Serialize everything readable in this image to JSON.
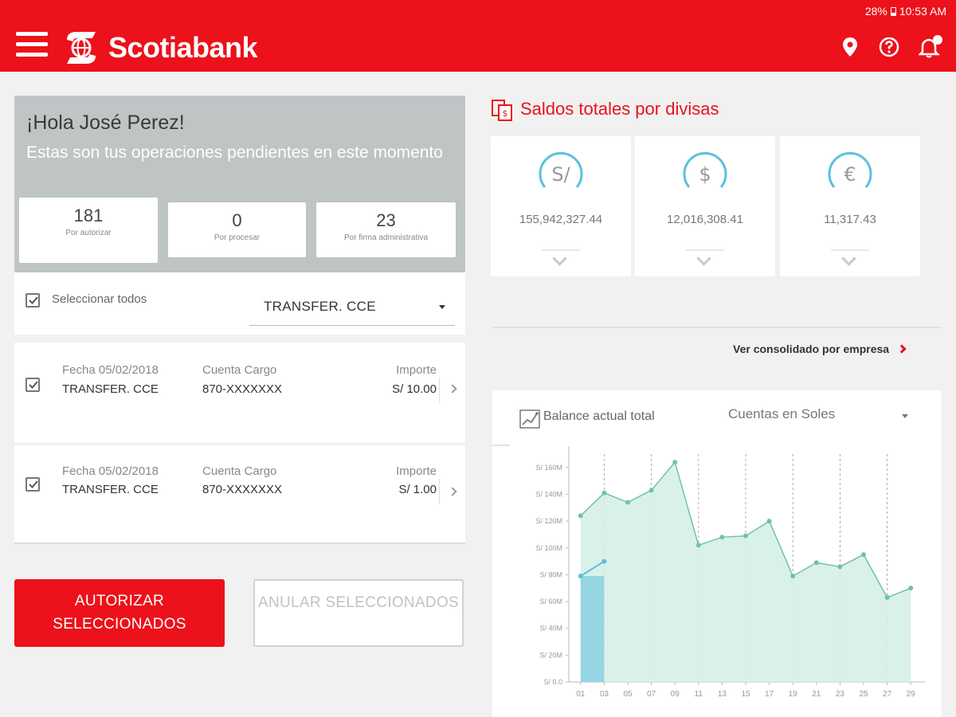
{
  "status": {
    "battery": "28%",
    "time": "10:53 AM"
  },
  "header": {
    "brand": "Scotiabank"
  },
  "greeting": {
    "title": "¡Hola José Perez!",
    "subtitle": "Estas son tus operaciones pendientes en este momento",
    "counts": [
      {
        "value": "181",
        "label": "Por autorizar"
      },
      {
        "value": "0",
        "label": "Por procesar"
      },
      {
        "value": "23",
        "label": "Por firma administrativa"
      }
    ]
  },
  "filter": {
    "select_all": "Seleccionar todos",
    "type_value": "TRANSFER. CCE"
  },
  "operations": [
    {
      "fecha": "Fecha 05/02/2018",
      "tipo": "TRANSFER. CCE",
      "cuenta_label": "Cuenta Cargo",
      "cuenta": "870-XXXXXXX",
      "importe_label": "Importe",
      "importe": "S/ 10.00"
    },
    {
      "fecha": "Fecha 05/02/2018",
      "tipo": "TRANSFER. CCE",
      "cuenta_label": "Cuenta Cargo",
      "cuenta": "870-XXXXXXX",
      "importe_label": "Importe",
      "importe": "S/ 1.00"
    }
  ],
  "buttons": {
    "authorize": "AUTORIZAR SELECCIONADOS",
    "cancel": "ANULAR SELECCIONADOS"
  },
  "balances": {
    "title": "Saldos totales por divisas",
    "currencies": [
      {
        "symbol": "S/",
        "amount": "155,942,327.44"
      },
      {
        "symbol": "$",
        "amount": "12,016,308.41"
      },
      {
        "symbol": "€",
        "amount": "11,317.43"
      }
    ],
    "link": "Ver consolidado por empresa"
  },
  "balance_chart": {
    "title": "Balance actual total",
    "account": "Cuentas en Soles"
  },
  "colors": {
    "brand": "#ec111a",
    "accent": "#5bc0de",
    "series": "#6fc3a8",
    "series_fill": "#d6efe7"
  },
  "chart_data": {
    "type": "area",
    "y_ticks": [
      "S/ 0.0",
      "S/ 20M",
      "S/ 40M",
      "S/ 60M",
      "S/ 80M",
      "S/ 100M",
      "S/ 120M",
      "S/ 140M",
      "S/ 160M"
    ],
    "x_ticks": [
      "01",
      "03",
      "05",
      "07",
      "09",
      "11",
      "13",
      "15",
      "17",
      "19",
      "21",
      "23",
      "25",
      "27",
      "29"
    ],
    "ylim": [
      0,
      170
    ],
    "series": [
      {
        "x": [
          1,
          3,
          5,
          7,
          9,
          11,
          13,
          15,
          17,
          19,
          21,
          23,
          25,
          27,
          29
        ],
        "values": [
          124,
          141,
          134,
          143,
          164,
          102,
          108,
          109,
          120,
          79,
          89,
          86,
          95,
          63,
          70
        ]
      },
      {
        "x": [
          1,
          3
        ],
        "values": [
          79,
          90
        ]
      }
    ]
  }
}
